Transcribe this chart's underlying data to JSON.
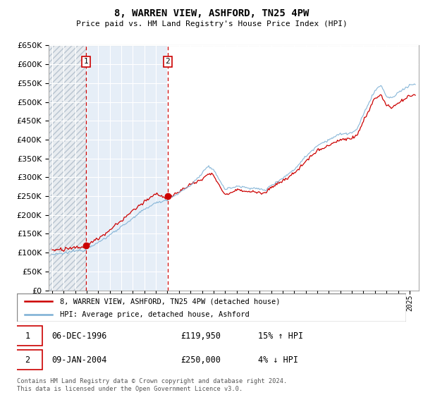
{
  "title": "8, WARREN VIEW, ASHFORD, TN25 4PW",
  "subtitle": "Price paid vs. HM Land Registry's House Price Index (HPI)",
  "hpi_color": "#7bafd4",
  "price_color": "#cc0000",
  "dashed_color": "#cc0000",
  "ylim": [
    0,
    650000
  ],
  "yticks": [
    0,
    50000,
    100000,
    150000,
    200000,
    250000,
    300000,
    350000,
    400000,
    450000,
    500000,
    550000,
    600000,
    650000
  ],
  "sale1_date": 1996.92,
  "sale1_price": 119950,
  "sale2_date": 2004.03,
  "sale2_price": 250000,
  "xmin": 1993.7,
  "xmax": 2025.8,
  "legend_line1": "8, WARREN VIEW, ASHFORD, TN25 4PW (detached house)",
  "legend_line2": "HPI: Average price, detached house, Ashford",
  "annotation1_date": "06-DEC-1996",
  "annotation1_price": "£119,950",
  "annotation1_hpi": "15% ↑ HPI",
  "annotation2_date": "09-JAN-2004",
  "annotation2_price": "£250,000",
  "annotation2_hpi": "4% ↓ HPI",
  "footer": "Contains HM Land Registry data © Crown copyright and database right 2024.\nThis data is licensed under the Open Government Licence v3.0."
}
